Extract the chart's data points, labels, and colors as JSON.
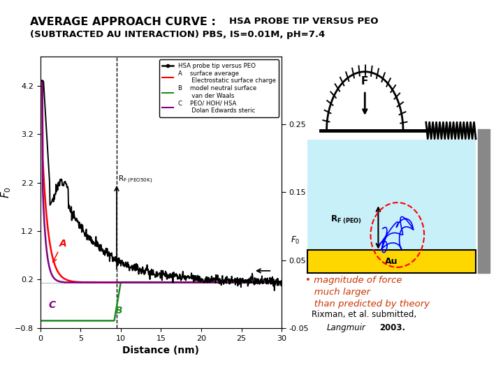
{
  "title_line1": "AVERAGE APPROACH CURVE : HSA PROBE TIP VERSUS PEO",
  "title_line2": "(SUBTRACTED AU INTERACTION) PBS, IS=0.01M, pH=7.4",
  "bg_color": "#ffffff",
  "left_ylim": [
    -0.8,
    4.8
  ],
  "right_ylim": [
    -0.05,
    0.35
  ],
  "xlim": [
    0,
    30
  ],
  "xlabel": "Distance (nm)",
  "ylabel_left": "F0",
  "yticks_left": [
    -0.8,
    0.2,
    1.2,
    2.2,
    3.2,
    4.2
  ],
  "yticks_right_vals": [
    -0.05,
    0.05,
    0.15,
    0.25
  ],
  "yticks_right_labels": [
    "-0.05",
    "0.05",
    "0.15",
    "0.25"
  ],
  "xticks": [
    0,
    5,
    10,
    15,
    20,
    25,
    30
  ],
  "cyan_color": "#c8f0f8",
  "yellow_color": "#ffd700",
  "bullet_color": "#cc3300",
  "spring_color": "#000000"
}
